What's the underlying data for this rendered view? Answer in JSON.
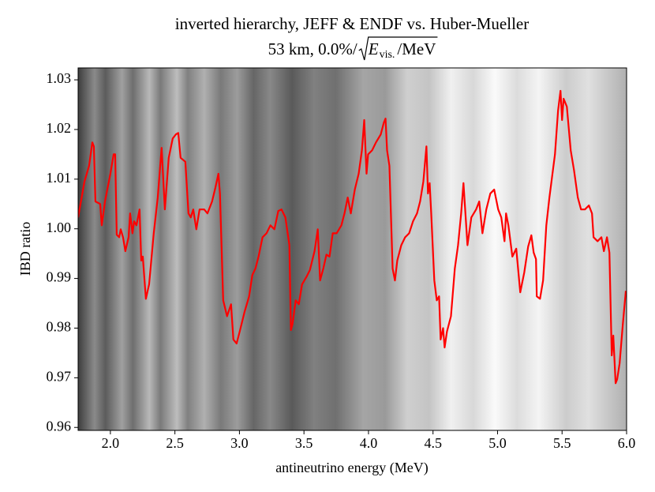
{
  "chart_data": {
    "type": "line",
    "title": "inverted hierarchy, JEFF & ENDF vs. Huber-Mueller",
    "subtitle": {
      "text": "53 km, 0.0%/",
      "radicand": "E",
      "subscript": "vis.",
      "unit": "/MeV"
    },
    "x_label": "antineutrino energy (MeV)",
    "y_label": "IBD ratio",
    "color": "#ff0000",
    "xlim": [
      1.75,
      6.0
    ],
    "ylim": [
      0.9594,
      1.0324
    ],
    "xticks": [
      {
        "value": 2,
        "label": "2.0"
      },
      2.5,
      {
        "value": 3,
        "label": "3.0"
      },
      3.5,
      {
        "value": 4,
        "label": "4.0"
      },
      4.5,
      {
        "value": 5,
        "label": "5.0"
      },
      5.5,
      {
        "value": 6,
        "label": "6.0"
      }
    ],
    "yticks": [
      0.96,
      0.97,
      0.98,
      0.99,
      {
        "value": 1,
        "label": "1.00"
      },
      1.01,
      1.02,
      1.03
    ],
    "x": [
      1.75,
      1.799,
      1.835,
      1.86,
      1.872,
      1.884,
      1.921,
      1.933,
      1.958,
      2.0,
      2.025,
      2.037,
      2.049,
      2.068,
      2.08,
      2.098,
      2.116,
      2.141,
      2.153,
      2.171,
      2.184,
      2.202,
      2.226,
      2.239,
      2.251,
      2.275,
      2.3,
      2.336,
      2.367,
      2.397,
      2.422,
      2.452,
      2.483,
      2.507,
      2.526,
      2.544,
      2.581,
      2.605,
      2.623,
      2.642,
      2.666,
      2.691,
      2.727,
      2.752,
      2.788,
      2.813,
      2.837,
      2.849,
      2.874,
      2.904,
      2.935,
      2.953,
      2.978,
      3.002,
      3.039,
      3.075,
      3.1,
      3.124,
      3.148,
      3.179,
      3.21,
      3.24,
      3.271,
      3.301,
      3.326,
      3.356,
      3.387,
      3.399,
      3.411,
      3.436,
      3.46,
      3.485,
      3.521,
      3.546,
      3.582,
      3.607,
      3.625,
      3.65,
      3.674,
      3.698,
      3.723,
      3.753,
      3.79,
      3.814,
      3.839,
      3.863,
      3.894,
      3.924,
      3.949,
      3.967,
      3.985,
      3.997,
      4.028,
      4.058,
      4.095,
      4.119,
      4.132,
      4.144,
      4.162,
      4.187,
      4.205,
      4.223,
      4.254,
      4.284,
      4.315,
      4.345,
      4.376,
      4.4,
      4.425,
      4.449,
      4.461,
      4.474,
      4.486,
      4.51,
      4.529,
      4.547,
      4.559,
      4.578,
      4.59,
      4.608,
      4.639,
      4.669,
      4.694,
      4.718,
      4.736,
      4.767,
      4.797,
      4.834,
      4.858,
      4.883,
      4.913,
      4.944,
      4.974,
      5.005,
      5.029,
      5.054,
      5.066,
      5.084,
      5.115,
      5.145,
      5.176,
      5.207,
      5.237,
      5.262,
      5.28,
      5.298,
      5.304,
      5.329,
      5.353,
      5.378,
      5.402,
      5.445,
      5.469,
      5.488,
      5.5,
      5.512,
      5.537,
      5.567,
      5.592,
      5.622,
      5.647,
      5.677,
      5.708,
      5.732,
      5.744,
      5.775,
      5.805,
      5.824,
      5.848,
      5.867,
      5.885,
      5.897,
      5.915,
      5.927,
      5.946,
      5.97,
      5.994
    ],
    "values": [
      1.0023,
      1.0095,
      1.0127,
      1.0174,
      1.0166,
      1.0055,
      1.005,
      1.0007,
      1.0055,
      1.0111,
      1.015,
      1.015,
      0.9988,
      0.9983,
      0.9999,
      0.9983,
      0.9955,
      0.9983,
      1.0031,
      0.9991,
      1.0015,
      1.0007,
      1.0039,
      0.9936,
      0.9944,
      0.9859,
      0.9888,
      0.9991,
      1.0063,
      1.0163,
      1.0039,
      1.0143,
      1.0182,
      1.019,
      1.0193,
      1.0143,
      1.0135,
      1.0031,
      1.0023,
      1.0039,
      0.9999,
      1.0039,
      1.0039,
      1.0031,
      1.0055,
      1.0082,
      1.0111,
      1.0071,
      0.9856,
      0.9824,
      0.9848,
      0.9777,
      0.9769,
      0.9793,
      0.9832,
      0.9864,
      0.9907,
      0.992,
      0.9944,
      0.9983,
      0.9991,
      1.0007,
      0.9999,
      1.0036,
      1.0039,
      1.0023,
      0.9967,
      0.9796,
      0.9808,
      0.9856,
      0.9848,
      0.9888,
      0.9904,
      0.9917,
      0.9955,
      0.9999,
      0.9896,
      0.992,
      0.9948,
      0.9944,
      0.9991,
      0.9991,
      1.0007,
      1.0031,
      1.0063,
      1.0031,
      1.0079,
      1.0111,
      1.0158,
      1.0219,
      1.0111,
      1.015,
      1.0158,
      1.0174,
      1.019,
      1.0214,
      1.0222,
      1.0158,
      1.0127,
      0.992,
      0.9896,
      0.9936,
      0.9967,
      0.9983,
      0.9991,
      1.0015,
      1.0031,
      1.0055,
      1.0095,
      1.0166,
      1.0071,
      1.0092,
      1.0031,
      0.9896,
      0.9856,
      0.9864,
      0.9777,
      0.98,
      0.9761,
      0.9793,
      0.9824,
      0.992,
      0.9967,
      1.0031,
      1.0092,
      0.9967,
      1.0023,
      1.0039,
      1.0055,
      0.9991,
      1.0039,
      1.0071,
      1.0079,
      1.0039,
      1.0023,
      0.9975,
      1.0031,
      1.0007,
      0.9944,
      0.996,
      0.9872,
      0.9912,
      0.9964,
      0.9987,
      0.9952,
      0.9939,
      0.9864,
      0.9859,
      0.9896,
      1.0007,
      1.0063,
      1.015,
      1.0238,
      1.0278,
      1.0219,
      1.0262,
      1.0246,
      1.0158,
      1.0119,
      1.0063,
      1.0039,
      1.0039,
      1.0047,
      1.0031,
      0.9983,
      0.9975,
      0.9983,
      0.9955,
      0.9983,
      0.9952,
      0.9745,
      0.9785,
      0.9689,
      0.9697,
      0.9729,
      0.9805,
      0.9875
    ]
  }
}
